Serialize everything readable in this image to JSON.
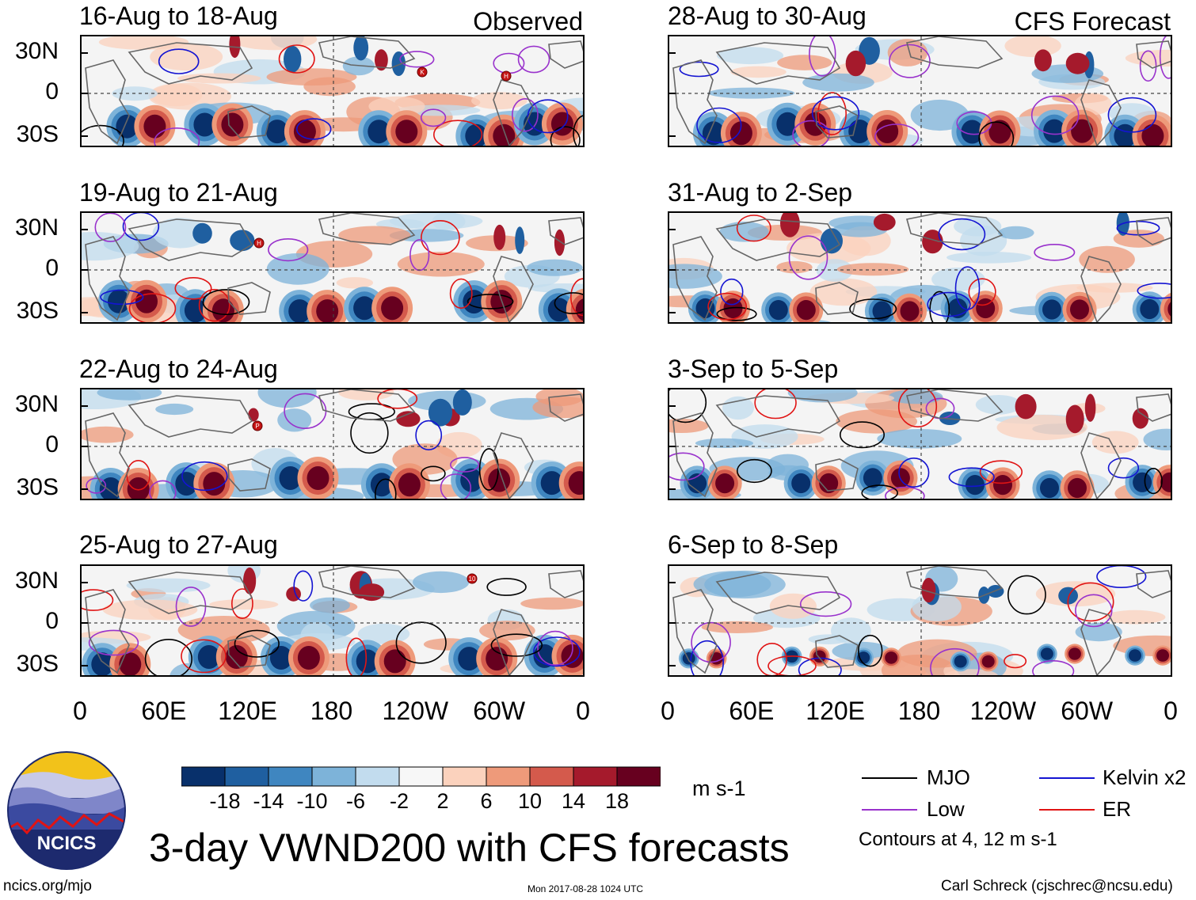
{
  "figure": {
    "title": "3-day VWND200 with CFS forecasts",
    "units": "m s-1",
    "url": "ncics.org/mjo",
    "timestamp": "Mon 2017-08-28 1024 UTC",
    "author": "Carl Schreck (cjschrec@ncsu.edu)",
    "logo_text": "NCICS",
    "observed_label": "Observed",
    "forecast_label": "CFS Forecast",
    "contour_note": "Contours at 4, 12 m s-1"
  },
  "panels": {
    "observed": [
      {
        "period": "16-Aug to 18-Aug"
      },
      {
        "period": "19-Aug to 21-Aug"
      },
      {
        "period": "22-Aug to 24-Aug"
      },
      {
        "period": "25-Aug to 27-Aug"
      }
    ],
    "forecast": [
      {
        "period": "28-Aug to 30-Aug"
      },
      {
        "period": "31-Aug to 2-Sep"
      },
      {
        "period": "3-Sep to 5-Sep"
      },
      {
        "period": "6-Sep to 8-Sep"
      }
    ]
  },
  "axes": {
    "lat_ticks": [
      "30N",
      "0",
      "30S"
    ],
    "lon_ticks": [
      "0",
      "60E",
      "120E",
      "180",
      "120W",
      "60W",
      "0"
    ]
  },
  "colorbar": {
    "labels": [
      "-18",
      "-14",
      "-10",
      "-6",
      "-2",
      "2",
      "6",
      "10",
      "14",
      "18"
    ],
    "colors": [
      "#08306b",
      "#1f5fa0",
      "#3f86c0",
      "#7db3d9",
      "#c2dcee",
      "#f7f7f7",
      "#fbd2bd",
      "#ee9a7a",
      "#d45a4c",
      "#a51a2c",
      "#67001f"
    ]
  },
  "legend": [
    {
      "label": "MJO",
      "color": "#000000"
    },
    {
      "label": "Kelvin x2",
      "color": "#1414d2"
    },
    {
      "label": "Low",
      "color": "#9932cc"
    },
    {
      "label": "ER",
      "color": "#e01414"
    }
  ],
  "storm_markers": [
    {
      "panel": "observed-1",
      "label": "K"
    },
    {
      "panel": "observed-1",
      "label": "H"
    },
    {
      "panel": "observed-2",
      "label": "H"
    },
    {
      "panel": "observed-3",
      "label": "P"
    },
    {
      "panel": "observed-4",
      "label": "10"
    }
  ]
}
